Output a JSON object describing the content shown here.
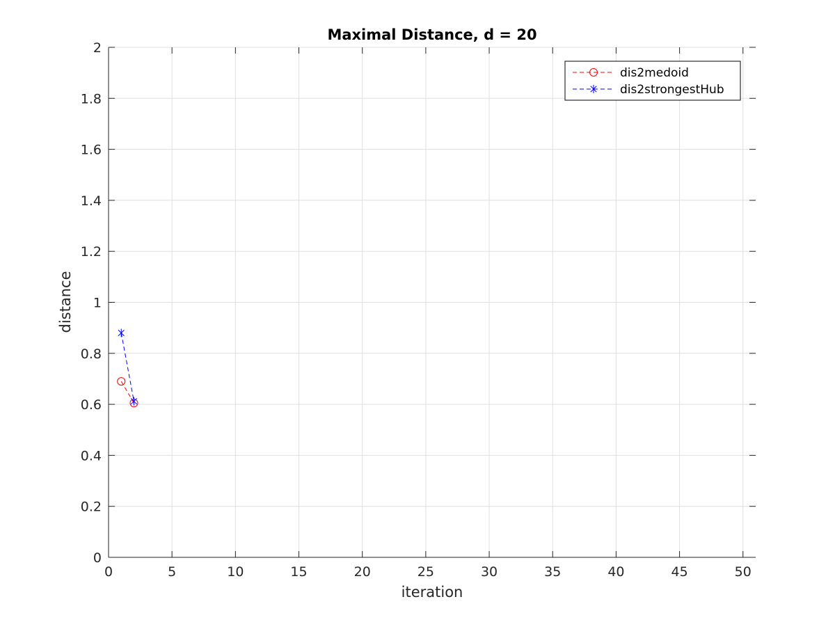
{
  "chart_data": {
    "type": "line",
    "title": "Maximal Distance, d = 20",
    "xlabel": "iteration",
    "ylabel": "distance",
    "xlim": [
      0,
      51
    ],
    "ylim": [
      0,
      2
    ],
    "xticks": [
      0,
      5,
      10,
      15,
      20,
      25,
      30,
      35,
      40,
      45,
      50
    ],
    "yticks": [
      0,
      0.2,
      0.4,
      0.6,
      0.8,
      1,
      1.2,
      1.4,
      1.6,
      1.8,
      2
    ],
    "xtick_labels": [
      "0",
      "5",
      "10",
      "15",
      "20",
      "25",
      "30",
      "35",
      "40",
      "45",
      "50"
    ],
    "ytick_labels": [
      "0",
      "0.2",
      "0.4",
      "0.6",
      "0.8",
      "1",
      "1.2",
      "1.4",
      "1.6",
      "1.8",
      "2"
    ],
    "grid": true,
    "legend_position": "top-right",
    "series": [
      {
        "name": "dis2medoid",
        "color": "#ff0000",
        "line_style": "dashed",
        "marker": "circle",
        "x": [
          1,
          2
        ],
        "y": [
          0.69,
          0.605
        ]
      },
      {
        "name": "dis2strongestHub",
        "color": "#0000ff",
        "line_style": "dashed",
        "marker": "asterisk",
        "x": [
          1,
          2
        ],
        "y": [
          0.88,
          0.612
        ]
      }
    ]
  }
}
